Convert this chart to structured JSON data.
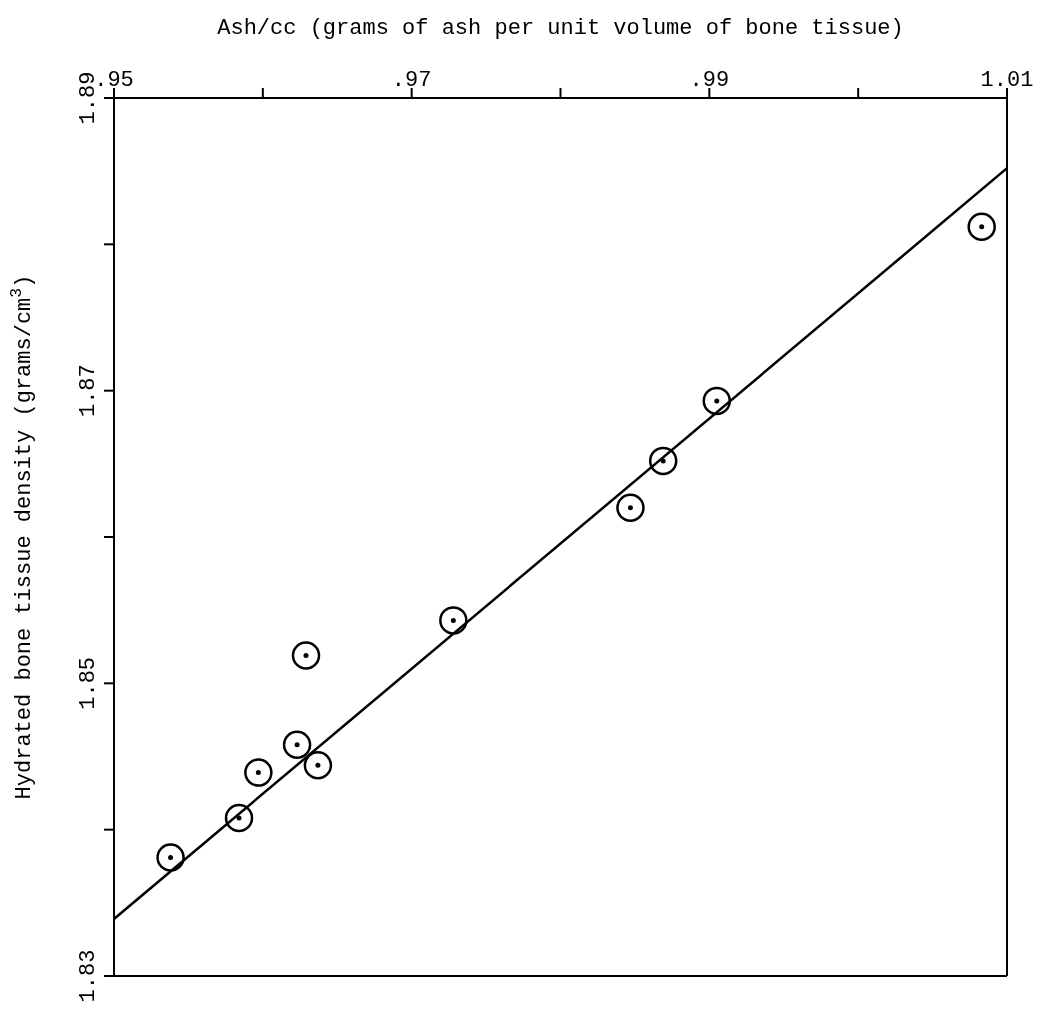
{
  "chart_data": {
    "type": "scatter",
    "xlabel": "Ash/cc (grams of ash per unit volume of bone tissue)",
    "ylabel": "Hydrated bone tissue density (grams/cm$^{3}$)",
    "xlim": [
      0.95,
      1.01
    ],
    "ylim": [
      1.83,
      1.89
    ],
    "xticks": [
      {
        "value": 0.95,
        "label": ".95"
      },
      {
        "value": 0.96,
        "label": null
      },
      {
        "value": 0.97,
        "label": ".97"
      },
      {
        "value": 0.98,
        "label": null
      },
      {
        "value": 0.99,
        "label": ".99"
      },
      {
        "value": 1.0,
        "label": null
      },
      {
        "value": 1.01,
        "label": "1.01"
      }
    ],
    "yticks": [
      1.83,
      {
        "value": 1.84,
        "label": null
      },
      1.85,
      {
        "value": 1.86,
        "label": null
      },
      1.87,
      {
        "value": 1.88,
        "label": null
      },
      1.89
    ],
    "legend": false,
    "series": [
      {
        "marker": "circle",
        "color": "#000000",
        "x": [
          0.9538,
          0.9584,
          0.9597,
          0.9623,
          0.9637,
          0.9629,
          0.9728,
          0.9847,
          0.9869,
          0.9905,
          1.0083
        ],
        "values": [
          1.8381,
          1.8408,
          1.8439,
          1.8458,
          1.8444,
          1.8519,
          1.8543,
          1.862,
          1.8652,
          1.8693,
          1.8812
        ]
      },
      {
        "type": "line",
        "marker": "none",
        "color": "#000000",
        "line_style": "solid",
        "x": [
          0.95,
          1.01
        ],
        "values": [
          1.8339,
          1.8852
        ]
      }
    ]
  }
}
